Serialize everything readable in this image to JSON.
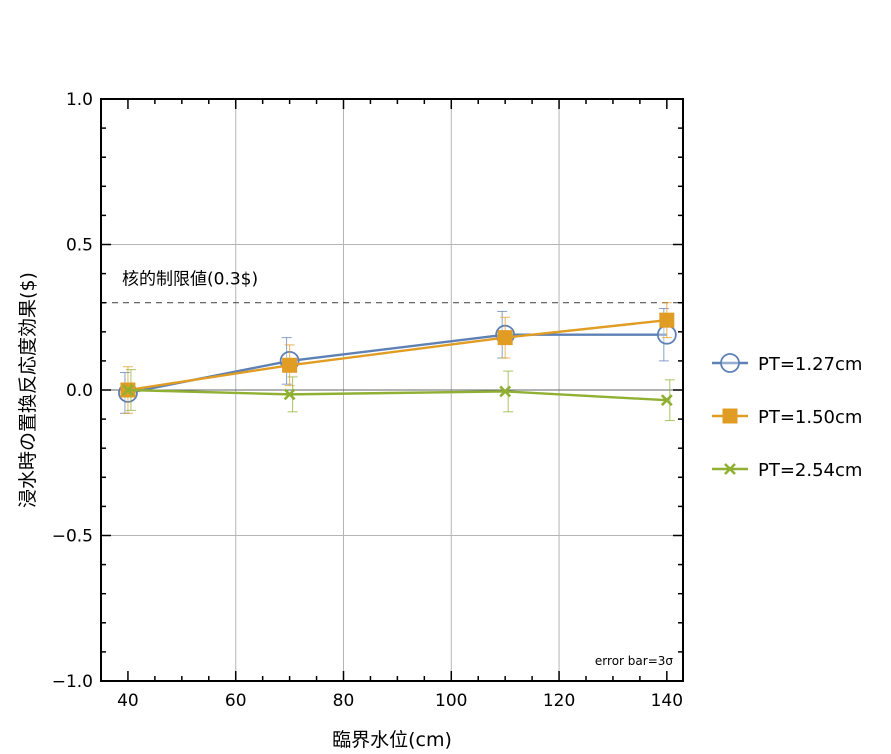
{
  "chart_data": {
    "type": "line",
    "xlabel": "臨界水位(cm)",
    "ylabel": "浸水時の置換反応度効果($)",
    "xlim": [
      35,
      143
    ],
    "ylim": [
      -1.0,
      1.0
    ],
    "x_ticks": [
      40,
      60,
      80,
      100,
      120,
      140
    ],
    "x_tick_labels": [
      "40",
      "60",
      "80",
      "100",
      "120",
      "140"
    ],
    "y_ticks": [
      -1.0,
      -0.5,
      0.0,
      0.5,
      1.0
    ],
    "y_tick_labels": [
      "−1.0",
      "−0.5",
      "0.0",
      "0.5",
      "1.0"
    ],
    "x_grid": [
      60,
      80,
      100,
      120
    ],
    "y_grid": [
      -0.5,
      0.0,
      0.5
    ],
    "grid": true,
    "legend_position": "right",
    "series": [
      {
        "name": "PT=1.27cm",
        "color": "#5e81b5",
        "marker": "open-circle",
        "x": [
          40,
          70,
          110,
          140
        ],
        "y": [
          -0.01,
          0.1,
          0.19,
          0.19
        ],
        "err": [
          0.07,
          0.08,
          0.08,
          0.09
        ]
      },
      {
        "name": "PT=1.50cm",
        "color": "#e19c24",
        "marker": "filled-square",
        "x": [
          40,
          70,
          110,
          140
        ],
        "y": [
          0.0,
          0.085,
          0.18,
          0.24
        ],
        "err": [
          0.08,
          0.07,
          0.07,
          0.06
        ]
      },
      {
        "name": "PT=2.54cm",
        "color": "#8fb032",
        "marker": "cross",
        "x": [
          40,
          70,
          110,
          140
        ],
        "y": [
          0.0,
          -0.015,
          -0.005,
          -0.035
        ],
        "err": [
          0.07,
          0.06,
          0.07,
          0.07
        ]
      }
    ],
    "reference_line": {
      "y": 0.3,
      "style": "dashed",
      "label": "核的制限値(0.3$)"
    },
    "annotation": "error bar=3σ"
  }
}
